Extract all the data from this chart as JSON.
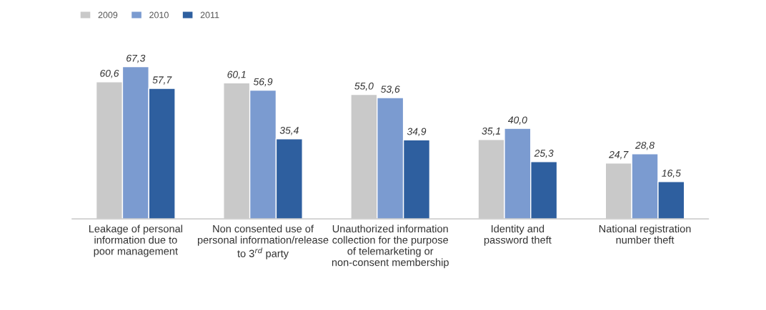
{
  "chart_data": {
    "type": "bar",
    "categories": [
      "Leakage of personal\ninformation due to\npoor management",
      "Non consented use of\npersonal information/release\nto 3$^{rd}$ party",
      "Unauthorized information\ncollection for the purpose\nof telemarketing or\nnon-consent membership",
      "Identity and\npassword theft",
      "National registration\nnumber theft"
    ],
    "series": [
      {
        "name": "2009",
        "color": "#c9c9c9",
        "values": [
          60.6,
          60.1,
          55.0,
          35.1,
          24.7
        ],
        "value_labels": [
          "60,6",
          "60,1",
          "55,0",
          "35,1",
          "24,7"
        ]
      },
      {
        "name": "2010",
        "color": "#7b9bd0",
        "values": [
          67.3,
          56.9,
          53.6,
          40.0,
          28.8
        ],
        "value_labels": [
          "67,3",
          "56,9",
          "53,6",
          "40,0",
          "28,8"
        ]
      },
      {
        "name": "2011",
        "color": "#2e5f9f",
        "values": [
          57.7,
          35.4,
          34.9,
          25.3,
          16.5
        ],
        "value_labels": [
          "57,7",
          "35,4",
          "34,9",
          "25,3",
          "16,5"
        ]
      }
    ],
    "legend": "top left",
    "grid": false
  }
}
